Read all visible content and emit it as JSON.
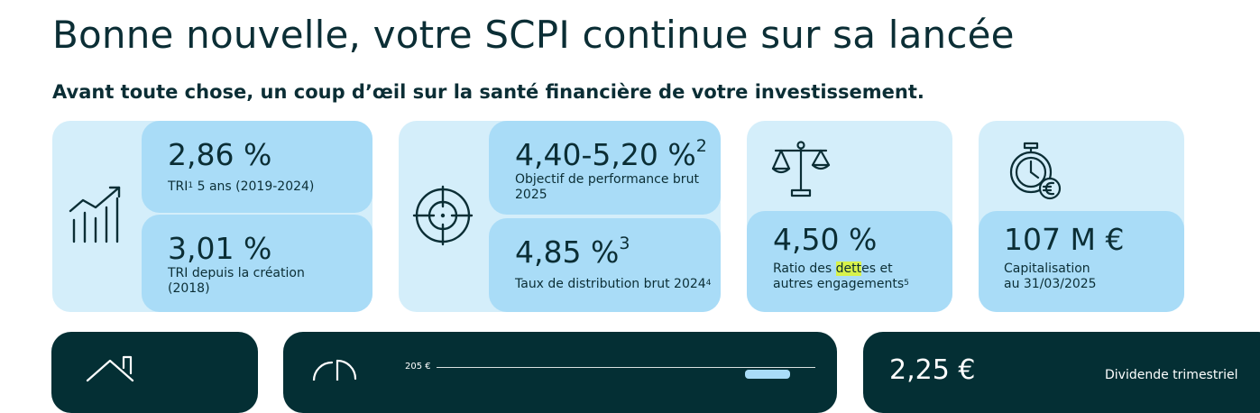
{
  "header": {
    "title": "Bonne nouvelle, votre SCPI continue sur sa lancée",
    "subtitle": "Avant toute chose, un coup d’œil sur la santé financière de votre investissement."
  },
  "kpi_tri": {
    "icon": "growth-chart-icon",
    "tri5_value": "2,86 %",
    "tri5_label": "TRI",
    "tri5_sup": "1",
    "tri5_label_rest": " 5 ans (2019-2024)",
    "tri_creation_value": "3,01 %",
    "tri_creation_label": "TRI depuis la création (2018)"
  },
  "kpi_perf": {
    "icon": "target-icon",
    "objective_value": "4,40-5,20 %",
    "objective_sup": "2",
    "objective_label": "Objectif de performance brut 2025",
    "distribution_value": "4,85 %",
    "distribution_sup": "3",
    "distribution_label": "Taux de distribution brut 2024",
    "distribution_label_sup": "4"
  },
  "kpi_ratio": {
    "icon": "balance-scale-icon",
    "value": "4,50 %",
    "label_before": "Ratio des ",
    "label_highlight": "dett",
    "label_after": "es et",
    "label_line2": "autres engagements",
    "label_sup": "5",
    "highlight_color": "#d8f24b"
  },
  "kpi_cap": {
    "icon": "stopwatch-euro-icon",
    "value": "107 M €",
    "label_line1": "Capitalisation",
    "label_line2": "au 31/03/2025"
  },
  "bottom": {
    "left_icon": "house-icon",
    "chart_icon": "pie-chart-icon",
    "chart_axis_label": "205 €",
    "right_value": "2,25 €",
    "right_label": "Dividende trimestriel"
  },
  "colors": {
    "text": "#0b2e35",
    "panel_light": "#d4eefa",
    "card_mid": "#a9dcf7",
    "dark": "#042f34"
  }
}
